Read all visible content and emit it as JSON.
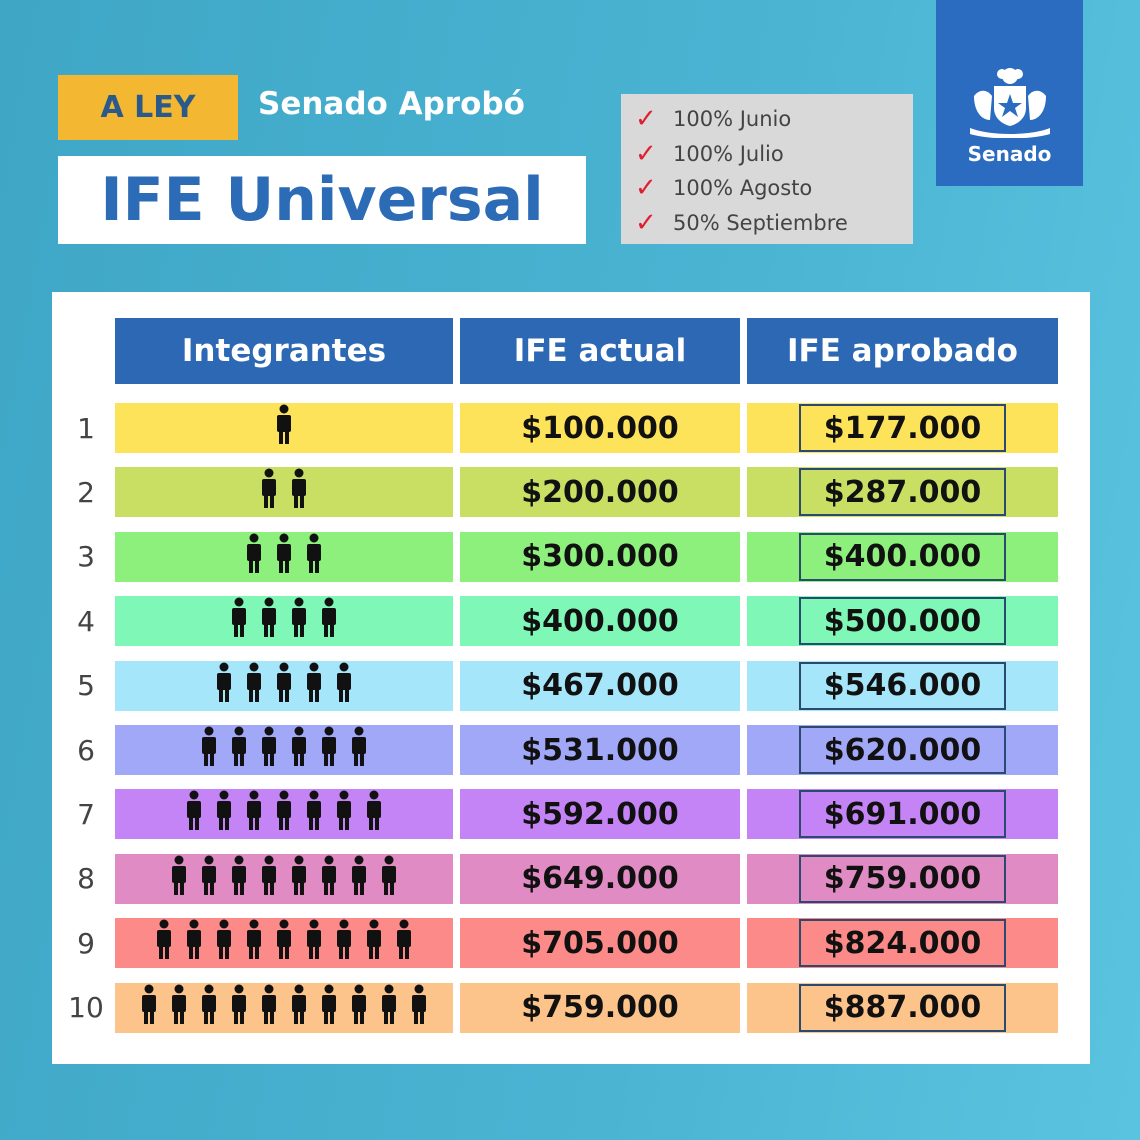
{
  "header": {
    "badge": "A LEY",
    "subtitle": "Senado Aprobó",
    "title": "IFE Universal"
  },
  "months": [
    "100% Junio",
    "100% Julio",
    "100% Agosto",
    "50% Septiembre"
  ],
  "logo": {
    "label": "Senado",
    "icon": "coat-of-arms-icon"
  },
  "table": {
    "columns": [
      "Integrantes",
      "IFE actual",
      "IFE aprobado"
    ],
    "rows": [
      {
        "n": "1",
        "people": 1,
        "actual": "$100.000",
        "aprobado": "$177.000",
        "color": "#fde35a"
      },
      {
        "n": "2",
        "people": 2,
        "actual": "$200.000",
        "aprobado": "$287.000",
        "color": "#c9df64"
      },
      {
        "n": "3",
        "people": 3,
        "actual": "$300.000",
        "aprobado": "$400.000",
        "color": "#8def7c"
      },
      {
        "n": "4",
        "people": 4,
        "actual": "$400.000",
        "aprobado": "$500.000",
        "color": "#7ff7b6"
      },
      {
        "n": "5",
        "people": 5,
        "actual": "$467.000",
        "aprobado": "$546.000",
        "color": "#a6e6fb"
      },
      {
        "n": "6",
        "people": 6,
        "actual": "$531.000",
        "aprobado": "$620.000",
        "color": "#a1a8f8"
      },
      {
        "n": "7",
        "people": 7,
        "actual": "$592.000",
        "aprobado": "$691.000",
        "color": "#c584f6"
      },
      {
        "n": "8",
        "people": 8,
        "actual": "$649.000",
        "aprobado": "$759.000",
        "color": "#e08bc4"
      },
      {
        "n": "9",
        "people": 9,
        "actual": "$705.000",
        "aprobado": "$824.000",
        "color": "#fb8a88"
      },
      {
        "n": "10",
        "people": 10,
        "actual": "$759.000",
        "aprobado": "$887.000",
        "color": "#fcc48a"
      }
    ]
  }
}
